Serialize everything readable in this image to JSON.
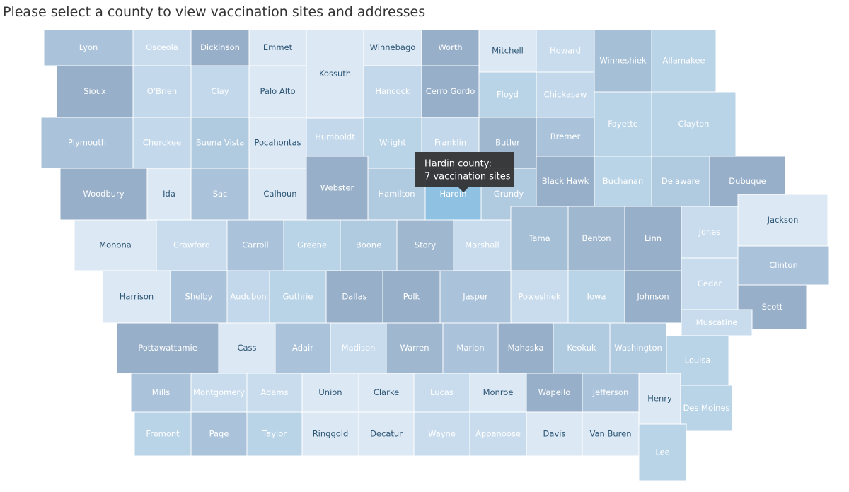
{
  "title": "Please select a county to view vaccination sites and addresses",
  "tooltip": {
    "title": "Hardin county:",
    "text": "7 vaccination sites"
  },
  "counties": [
    {
      "name": "Lyon",
      "color": "#aac3da"
    },
    {
      "name": "Osceola",
      "color": "#c9dced"
    },
    {
      "name": "Dickinson",
      "color": "#97afc8"
    },
    {
      "name": "Emmet",
      "color": "#dce9f5"
    },
    {
      "name": "Kossuth",
      "color": "#dce9f5"
    },
    {
      "name": "Winnebago",
      "color": "#dce9f5"
    },
    {
      "name": "Worth",
      "color": "#97afc8"
    },
    {
      "name": "Mitchell",
      "color": "#dce9f5"
    },
    {
      "name": "Howard",
      "color": "#c9dced"
    },
    {
      "name": "Winneshiek",
      "color": "#a5bfd6"
    },
    {
      "name": "Allamakee",
      "color": "#b9d3e7"
    },
    {
      "name": "Sioux",
      "color": "#97afc8"
    },
    {
      "name": "O'Brien",
      "color": "#c3d8ea"
    },
    {
      "name": "Clay",
      "color": "#c3d8ea"
    },
    {
      "name": "Palo Alto",
      "color": "#dce9f5"
    },
    {
      "name": "Hancock",
      "color": "#c3d8ea"
    },
    {
      "name": "Cerro Gordo",
      "color": "#97afc8"
    },
    {
      "name": "Floyd",
      "color": "#b9d3e7"
    },
    {
      "name": "Chickasaw",
      "color": "#c3d8ea"
    },
    {
      "name": "Fayette",
      "color": "#b9d3e7"
    },
    {
      "name": "Clayton",
      "color": "#b9d3e7"
    },
    {
      "name": "Plymouth",
      "color": "#aac3da"
    },
    {
      "name": "Cherokee",
      "color": "#c3d8ea"
    },
    {
      "name": "Buena Vista",
      "color": "#b0cae0"
    },
    {
      "name": "Pocahontas",
      "color": "#dce9f5"
    },
    {
      "name": "Humboldt",
      "color": "#c3d8ea"
    },
    {
      "name": "Wright",
      "color": "#b9d3e7"
    },
    {
      "name": "Franklin",
      "color": "#c3d8ea"
    },
    {
      "name": "Butler",
      "color": "#9fb8cf"
    },
    {
      "name": "Bremer",
      "color": "#aac3da"
    },
    {
      "name": "Buchanan",
      "color": "#b9d3e7"
    },
    {
      "name": "Delaware",
      "color": "#b0cae0"
    },
    {
      "name": "Dubuque",
      "color": "#97afc8"
    },
    {
      "name": "Black Hawk",
      "color": "#97afc8"
    },
    {
      "name": "Woodbury",
      "color": "#97afc8"
    },
    {
      "name": "Ida",
      "color": "#dce9f5"
    },
    {
      "name": "Sac",
      "color": "#aac3da"
    },
    {
      "name": "Calhoun",
      "color": "#dce9f5"
    },
    {
      "name": "Webster",
      "color": "#97afc8"
    },
    {
      "name": "Hamilton",
      "color": "#b0cae0"
    },
    {
      "name": "Hardin",
      "color": "#8ec1e2"
    },
    {
      "name": "Grundy",
      "color": "#b0cae0"
    },
    {
      "name": "Monona",
      "color": "#dce9f5"
    },
    {
      "name": "Crawford",
      "color": "#c9dced"
    },
    {
      "name": "Carroll",
      "color": "#aac3da"
    },
    {
      "name": "Greene",
      "color": "#b9d3e7"
    },
    {
      "name": "Boone",
      "color": "#b0cae0"
    },
    {
      "name": "Story",
      "color": "#9fb8cf"
    },
    {
      "name": "Marshall",
      "color": "#c9dced"
    },
    {
      "name": "Tama",
      "color": "#a5bfd6"
    },
    {
      "name": "Benton",
      "color": "#9fb8cf"
    },
    {
      "name": "Linn",
      "color": "#97afc8"
    },
    {
      "name": "Jones",
      "color": "#c9dced"
    },
    {
      "name": "Jackson",
      "color": "#dce9f5"
    },
    {
      "name": "Harrison",
      "color": "#dce9f5"
    },
    {
      "name": "Shelby",
      "color": "#aac3da"
    },
    {
      "name": "Audubon",
      "color": "#c3d8ea"
    },
    {
      "name": "Guthrie",
      "color": "#b9d3e7"
    },
    {
      "name": "Dallas",
      "color": "#97afc8"
    },
    {
      "name": "Polk",
      "color": "#97afc8"
    },
    {
      "name": "Jasper",
      "color": "#aac3da"
    },
    {
      "name": "Poweshiek",
      "color": "#c9dced"
    },
    {
      "name": "Iowa",
      "color": "#b9d3e7"
    },
    {
      "name": "Johnson",
      "color": "#97afc8"
    },
    {
      "name": "Cedar",
      "color": "#c9dced"
    },
    {
      "name": "Clinton",
      "color": "#aac3da"
    },
    {
      "name": "Scott",
      "color": "#97afc8"
    },
    {
      "name": "Muscatine",
      "color": "#c9dced"
    },
    {
      "name": "Pottawattamie",
      "color": "#97afc8"
    },
    {
      "name": "Cass",
      "color": "#dce9f5"
    },
    {
      "name": "Adair",
      "color": "#aac3da"
    },
    {
      "name": "Madison",
      "color": "#c9dced"
    },
    {
      "name": "Warren",
      "color": "#9fb8cf"
    },
    {
      "name": "Marion",
      "color": "#aac3da"
    },
    {
      "name": "Mahaska",
      "color": "#97afc8"
    },
    {
      "name": "Keokuk",
      "color": "#b0cae0"
    },
    {
      "name": "Washington",
      "color": "#b0cae0"
    },
    {
      "name": "Louisa",
      "color": "#b9d3e7"
    },
    {
      "name": "Mills",
      "color": "#aac3da"
    },
    {
      "name": "Montgomery",
      "color": "#c9dced"
    },
    {
      "name": "Adams",
      "color": "#c9dced"
    },
    {
      "name": "Union",
      "color": "#dce9f5"
    },
    {
      "name": "Clarke",
      "color": "#dce9f5"
    },
    {
      "name": "Lucas",
      "color": "#c9dced"
    },
    {
      "name": "Monroe",
      "color": "#dce9f5"
    },
    {
      "name": "Wapello",
      "color": "#97afc8"
    },
    {
      "name": "Jefferson",
      "color": "#aac3da"
    },
    {
      "name": "Henry",
      "color": "#dce9f5"
    },
    {
      "name": "Des Moines",
      "color": "#b9d3e7"
    },
    {
      "name": "Fremont",
      "color": "#b9d3e7"
    },
    {
      "name": "Page",
      "color": "#aac3da"
    },
    {
      "name": "Taylor",
      "color": "#b9d3e7"
    },
    {
      "name": "Ringgold",
      "color": "#dce9f5"
    },
    {
      "name": "Decatur",
      "color": "#dce9f5"
    },
    {
      "name": "Wayne",
      "color": "#c9dced"
    },
    {
      "name": "Appanoose",
      "color": "#c9dced"
    },
    {
      "name": "Davis",
      "color": "#dce9f5"
    },
    {
      "name": "Van Buren",
      "color": "#dce9f5"
    },
    {
      "name": "Lee",
      "color": "#b9d3e7"
    }
  ]
}
